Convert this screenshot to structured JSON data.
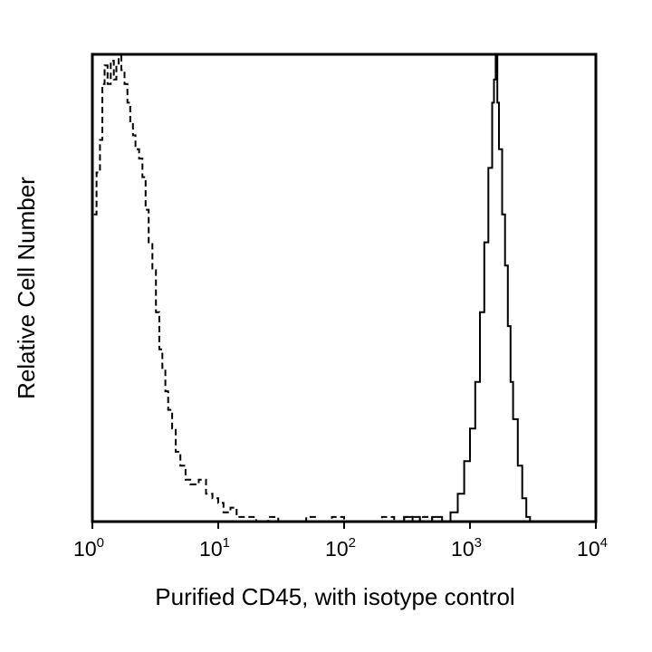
{
  "chart_data": {
    "type": "histogram-overlay",
    "xlabel": "Purified CD45, with isotype control",
    "ylabel": "Relative Cell Number",
    "x_scale": "log",
    "xlim": [
      1,
      10000
    ],
    "ylim": [
      0,
      1
    ],
    "grid": false,
    "x_ticks": [
      {
        "value": 1,
        "base": "10",
        "exp": "0"
      },
      {
        "value": 10,
        "base": "10",
        "exp": "1"
      },
      {
        "value": 100,
        "base": "10",
        "exp": "2"
      },
      {
        "value": 1000,
        "base": "10",
        "exp": "3"
      },
      {
        "value": 10000,
        "base": "10",
        "exp": "4"
      }
    ],
    "series": [
      {
        "line_style": "dashed",
        "points": [
          [
            1.0,
            0.66
          ],
          [
            1.08,
            0.75
          ],
          [
            1.15,
            0.82
          ],
          [
            1.2,
            0.94
          ],
          [
            1.25,
            0.98
          ],
          [
            1.32,
            0.94
          ],
          [
            1.4,
            0.99
          ],
          [
            1.48,
            0.95
          ],
          [
            1.55,
            0.98
          ],
          [
            1.62,
            1.0
          ],
          [
            1.7,
            0.97
          ],
          [
            1.8,
            0.94
          ],
          [
            1.9,
            0.9
          ],
          [
            2.0,
            0.86
          ],
          [
            2.1,
            0.83
          ],
          [
            2.2,
            0.8
          ],
          [
            2.35,
            0.78
          ],
          [
            2.5,
            0.74
          ],
          [
            2.65,
            0.67
          ],
          [
            2.8,
            0.6
          ],
          [
            3.0,
            0.54
          ],
          [
            3.2,
            0.45
          ],
          [
            3.4,
            0.37
          ],
          [
            3.6,
            0.33
          ],
          [
            3.8,
            0.28
          ],
          [
            4.0,
            0.24
          ],
          [
            4.3,
            0.2
          ],
          [
            4.6,
            0.15
          ],
          [
            5.0,
            0.12
          ],
          [
            5.5,
            0.09
          ],
          [
            6.0,
            0.08
          ],
          [
            7.0,
            0.09
          ],
          [
            8.0,
            0.06
          ],
          [
            9.0,
            0.05
          ],
          [
            10.0,
            0.04
          ],
          [
            11.0,
            0.02
          ],
          [
            12.5,
            0.03
          ],
          [
            14.0,
            0.01
          ],
          [
            17.0,
            0.01
          ],
          [
            20.0,
            0.0
          ],
          [
            25.0,
            0.01
          ],
          [
            30.0,
            0.0
          ],
          [
            40.0,
            0.0
          ],
          [
            50.0,
            0.01
          ],
          [
            60.0,
            0.0
          ],
          [
            80.0,
            0.01
          ],
          [
            100.0,
            0.0
          ],
          [
            150.0,
            0.0
          ],
          [
            200.0,
            0.01
          ],
          [
            250.0,
            0.0
          ],
          [
            300.0,
            0.01
          ],
          [
            350.0,
            0.0
          ],
          [
            400.0,
            0.01
          ],
          [
            500.0,
            0.0
          ],
          [
            700.0,
            0.0
          ]
        ]
      },
      {
        "line_style": "solid",
        "points": [
          [
            200.0,
            0.0
          ],
          [
            300.0,
            0.01
          ],
          [
            400.0,
            0.0
          ],
          [
            500.0,
            0.01
          ],
          [
            600.0,
            0.0
          ],
          [
            700.0,
            0.02
          ],
          [
            800.0,
            0.06
          ],
          [
            900.0,
            0.13
          ],
          [
            1000.0,
            0.2
          ],
          [
            1100.0,
            0.3
          ],
          [
            1200.0,
            0.45
          ],
          [
            1300.0,
            0.6
          ],
          [
            1400.0,
            0.76
          ],
          [
            1500.0,
            0.9
          ],
          [
            1550.0,
            0.95
          ],
          [
            1600.0,
            1.0
          ],
          [
            1650.0,
            0.9
          ],
          [
            1700.0,
            0.8
          ],
          [
            1800.0,
            0.66
          ],
          [
            1900.0,
            0.55
          ],
          [
            2000.0,
            0.42
          ],
          [
            2100.0,
            0.3
          ],
          [
            2200.0,
            0.22
          ],
          [
            2400.0,
            0.12
          ],
          [
            2600.0,
            0.05
          ],
          [
            2800.0,
            0.01
          ],
          [
            3000.0,
            0.0
          ]
        ]
      }
    ]
  }
}
